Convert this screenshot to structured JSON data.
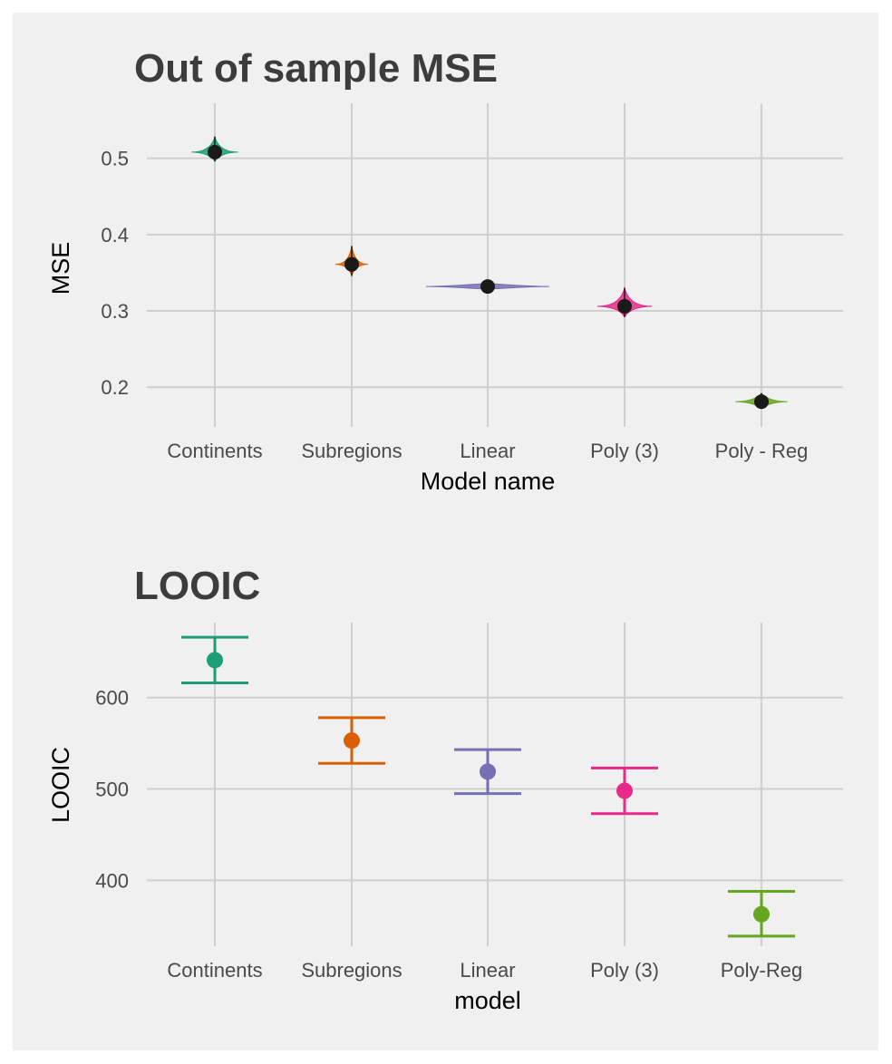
{
  "colors": {
    "background": "#f0f0f0",
    "grid": "#cfcfcf",
    "continents": "#1b9e77",
    "subregions": "#d95f02",
    "linear": "#7570b3",
    "poly3": "#e7298a",
    "polyreg": "#66a61e"
  },
  "chart_data": [
    {
      "type": "violin",
      "title": "Out of sample MSE",
      "xlabel": "Model name",
      "ylabel": "MSE",
      "categories": [
        "Continents",
        "Subregions",
        "Linear",
        "Poly (3)",
        "Poly - Reg"
      ],
      "values": [
        0.508,
        0.361,
        0.332,
        0.306,
        0.181
      ],
      "violin_ranges": [
        [
          0.496,
          0.528
        ],
        [
          0.346,
          0.385
        ],
        [
          0.329,
          0.336
        ],
        [
          0.292,
          0.33
        ],
        [
          0.172,
          0.192
        ]
      ],
      "violin_max_halfwidth": [
        0.17,
        0.12,
        0.45,
        0.2,
        0.19
      ],
      "ylim": [
        0.148,
        0.572
      ],
      "yticks": [
        0.2,
        0.3,
        0.4,
        0.5
      ],
      "ytick_labels": [
        "0.2",
        "0.3",
        "0.4",
        "0.5"
      ],
      "grid": true,
      "legend": "none"
    },
    {
      "type": "errorbar",
      "title": "LOOIC",
      "xlabel": "model",
      "ylabel": "LOOIC",
      "categories": [
        "Continents",
        "Subregions",
        "Linear",
        "Poly (3)",
        "Poly-Reg"
      ],
      "values": [
        641,
        553,
        519,
        498,
        363
      ],
      "lower": [
        616,
        528,
        495,
        473,
        339
      ],
      "upper": [
        666,
        578,
        543,
        523,
        388
      ],
      "ylim": [
        328,
        682
      ],
      "yticks": [
        400,
        500,
        600
      ],
      "ytick_labels": [
        "400",
        "500",
        "600"
      ],
      "grid": true,
      "legend": "none"
    }
  ]
}
